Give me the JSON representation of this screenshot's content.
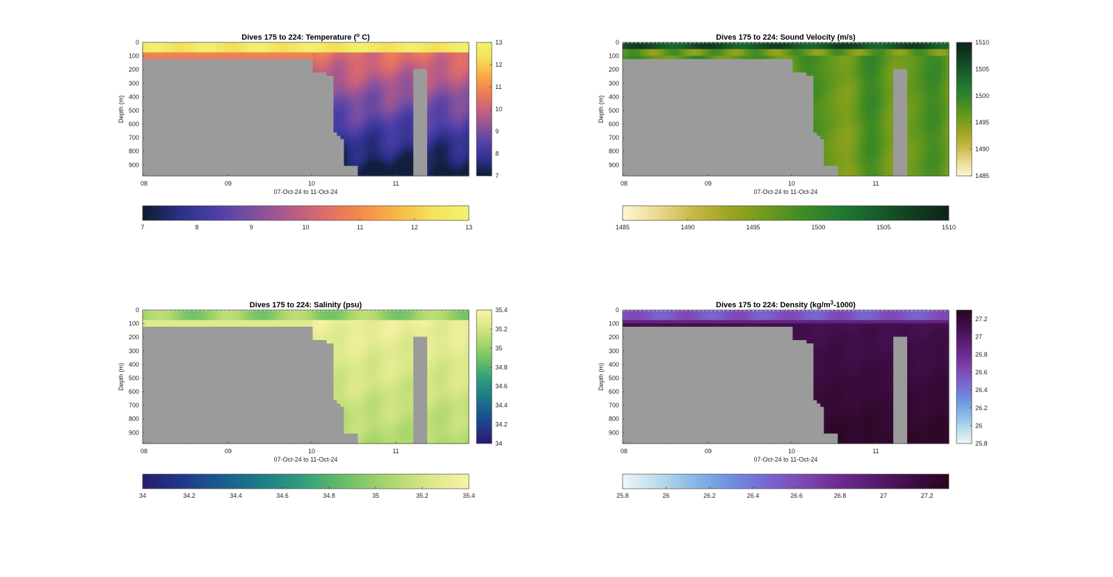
{
  "figure": {
    "background": "#ffffff",
    "land_color": "#9b9b9b"
  },
  "chart_data": [
    {
      "type": "heatmap",
      "id": "temperature",
      "title": "Dives 175 to 224: Temperature (",
      "title_super": "o",
      "title_tail": " C)",
      "xlabel": "07-Oct-24 to 11-Oct-24",
      "ylabel": "Depth (m)",
      "x_ticks": [
        "08",
        "09",
        "10",
        "11"
      ],
      "y_ticks": [
        0,
        100,
        200,
        300,
        400,
        500,
        600,
        700,
        800,
        900
      ],
      "ylim": [
        0,
        980
      ],
      "colorbar_ticks": [
        7,
        8,
        9,
        10,
        11,
        12,
        13
      ],
      "colorbar_h_ticks": [
        7,
        8,
        9,
        10,
        11,
        12,
        13
      ],
      "clim": [
        7,
        13
      ],
      "colormap": [
        "#0d1b2e",
        "#2b2f86",
        "#4b3ea7",
        "#7a4fa0",
        "#b35a8a",
        "#de6c6b",
        "#f58a4a",
        "#f9b646",
        "#f4e25a",
        "#f2f36e"
      ]
    },
    {
      "type": "heatmap",
      "id": "sound-velocity",
      "title": "Dives 175 to 224: Sound Velocity (m/s)",
      "title_super": "",
      "title_tail": "",
      "xlabel": "07-Oct-24 to 11-Oct-24",
      "ylabel": "Depth (m)",
      "x_ticks": [
        "08",
        "09",
        "10",
        "11"
      ],
      "y_ticks": [
        0,
        100,
        200,
        300,
        400,
        500,
        600,
        700,
        800,
        900
      ],
      "ylim": [
        0,
        980
      ],
      "colorbar_ticks": [
        1485,
        1490,
        1495,
        1500,
        1505,
        1510
      ],
      "colorbar_h_ticks": [
        1485,
        1490,
        1495,
        1500,
        1505,
        1510
      ],
      "clim": [
        1485,
        1510
      ],
      "colormap": [
        "#fdf6d3",
        "#e9d98c",
        "#c4b744",
        "#9aa41f",
        "#6b9a1c",
        "#3f8a24",
        "#1f7a32",
        "#175d2c",
        "#123d20",
        "#0d2416"
      ]
    },
    {
      "type": "heatmap",
      "id": "salinity",
      "title": "Dives 175 to 224: Salinity (psu)",
      "title_super": "",
      "title_tail": "",
      "xlabel": "07-Oct-24 to 11-Oct-24",
      "ylabel": "Depth (m)",
      "x_ticks": [
        "08",
        "09",
        "10",
        "11"
      ],
      "y_ticks": [
        0,
        100,
        200,
        300,
        400,
        500,
        600,
        700,
        800,
        900
      ],
      "ylim": [
        0,
        980
      ],
      "colorbar_ticks": [
        34,
        34.2,
        34.4,
        34.6,
        34.8,
        35,
        35.2,
        35.4
      ],
      "colorbar_h_ticks": [
        34,
        34.2,
        34.4,
        34.6,
        34.8,
        35,
        35.2,
        35.4
      ],
      "clim": [
        34,
        35.4
      ],
      "colormap": [
        "#2a1a6b",
        "#1f3a8c",
        "#1a5f8f",
        "#1f7f86",
        "#35a07a",
        "#6cc066",
        "#a9d66a",
        "#d9e889",
        "#fbf2a6"
      ]
    },
    {
      "type": "heatmap",
      "id": "density",
      "title": "Dives 175 to 224: Density (kg/m",
      "title_super": "3",
      "title_tail": "-1000)",
      "xlabel": "07-Oct-24 to 11-Oct-24",
      "ylabel": "Depth (m)",
      "x_ticks": [
        "08",
        "09",
        "10",
        "11"
      ],
      "y_ticks": [
        0,
        100,
        200,
        300,
        400,
        500,
        600,
        700,
        800,
        900
      ],
      "ylim": [
        0,
        980
      ],
      "colorbar_ticks": [
        25.8,
        26,
        26.2,
        26.4,
        26.6,
        26.8,
        27,
        27.2
      ],
      "colorbar_h_ticks": [
        25.8,
        26,
        26.2,
        26.4,
        26.6,
        26.8,
        27,
        27.2
      ],
      "clim": [
        25.8,
        27.3
      ],
      "colormap": [
        "#eef7f9",
        "#b9dcea",
        "#86b8e6",
        "#6e8fe0",
        "#7a66d0",
        "#7f47b2",
        "#6d2a8f",
        "#561a6d",
        "#3d0d45",
        "#2a061f"
      ]
    }
  ]
}
